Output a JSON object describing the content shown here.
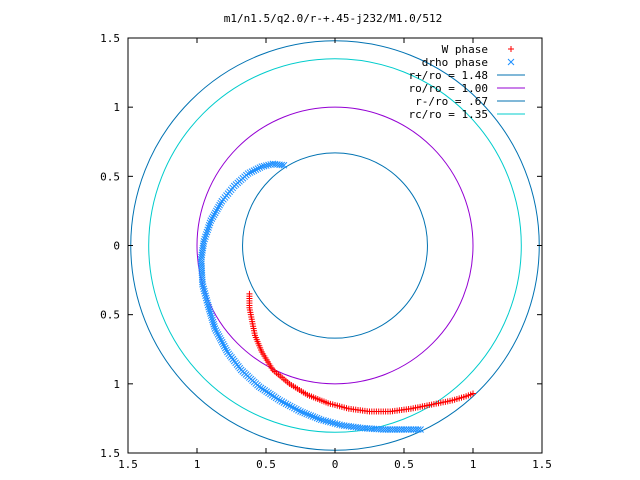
{
  "chart_data": {
    "type": "scatter",
    "title": "m1/n1.5/q2.0/r-+.45-j232/M1.0/512",
    "xlabel": "",
    "ylabel": "",
    "xlim": [
      -1.5,
      1.5
    ],
    "ylim": [
      -1.5,
      1.5
    ],
    "x_ticks": [
      {
        "v": -1.5,
        "label": "1.5"
      },
      {
        "v": -1,
        "label": "1"
      },
      {
        "v": -0.5,
        "label": "0.5"
      },
      {
        "v": 0,
        "label": "0"
      },
      {
        "v": 0.5,
        "label": "0.5"
      },
      {
        "v": 1,
        "label": "1"
      },
      {
        "v": 1.5,
        "label": "1.5"
      }
    ],
    "y_ticks": [
      {
        "v": 1.5,
        "label": "1.5"
      },
      {
        "v": 1,
        "label": "1"
      },
      {
        "v": 0.5,
        "label": "0.5"
      },
      {
        "v": 0,
        "label": "0"
      },
      {
        "v": -0.5,
        "label": "0.5"
      },
      {
        "v": -1,
        "label": "1"
      },
      {
        "v": -1.5,
        "label": "1.5"
      }
    ],
    "grid": false,
    "legend_position": "top-right",
    "series": [
      {
        "name": "W phase",
        "kind": "points",
        "marker": "plus",
        "color": "#ff0000",
        "points": [
          [
            -0.62,
            -0.35
          ],
          [
            -0.62,
            -0.45
          ],
          [
            -0.6,
            -0.55
          ],
          [
            -0.58,
            -0.65
          ],
          [
            -0.53,
            -0.77
          ],
          [
            -0.45,
            -0.9
          ],
          [
            -0.33,
            -1.0
          ],
          [
            -0.2,
            -1.08
          ],
          [
            -0.05,
            -1.14
          ],
          [
            0.1,
            -1.18
          ],
          [
            0.25,
            -1.2
          ],
          [
            0.4,
            -1.2
          ],
          [
            0.55,
            -1.18
          ],
          [
            0.7,
            -1.15
          ],
          [
            0.85,
            -1.12
          ],
          [
            0.95,
            -1.09
          ],
          [
            1.0,
            -1.07
          ]
        ]
      },
      {
        "name": "drho phase",
        "kind": "points",
        "marker": "cross",
        "color": "#1e90ff",
        "points": [
          [
            -0.37,
            0.58
          ],
          [
            -0.45,
            0.59
          ],
          [
            -0.53,
            0.57
          ],
          [
            -0.63,
            0.52
          ],
          [
            -0.73,
            0.43
          ],
          [
            -0.82,
            0.32
          ],
          [
            -0.9,
            0.18
          ],
          [
            -0.95,
            0.03
          ],
          [
            -0.97,
            -0.1
          ],
          [
            -0.96,
            -0.28
          ],
          [
            -0.92,
            -0.43
          ],
          [
            -0.87,
            -0.6
          ],
          [
            -0.78,
            -0.77
          ],
          [
            -0.68,
            -0.9
          ],
          [
            -0.55,
            -1.02
          ],
          [
            -0.4,
            -1.12
          ],
          [
            -0.25,
            -1.2
          ],
          [
            -0.1,
            -1.26
          ],
          [
            0.05,
            -1.3
          ],
          [
            0.2,
            -1.32
          ],
          [
            0.35,
            -1.33
          ],
          [
            0.5,
            -1.33
          ],
          [
            0.62,
            -1.33
          ]
        ]
      },
      {
        "name": "r+/ro = 1.48",
        "kind": "circle",
        "radius": 1.48,
        "color": "#0072b2"
      },
      {
        "name": "ro/ro = 1.00",
        "kind": "circle",
        "radius": 1.0,
        "color": "#9400d3"
      },
      {
        "name": "r-/ro = .67",
        "kind": "circle",
        "radius": 0.67,
        "color": "#0072b2"
      },
      {
        "name": "rc/ro = 1.35",
        "kind": "circle",
        "radius": 1.35,
        "color": "#00cccc"
      }
    ]
  }
}
